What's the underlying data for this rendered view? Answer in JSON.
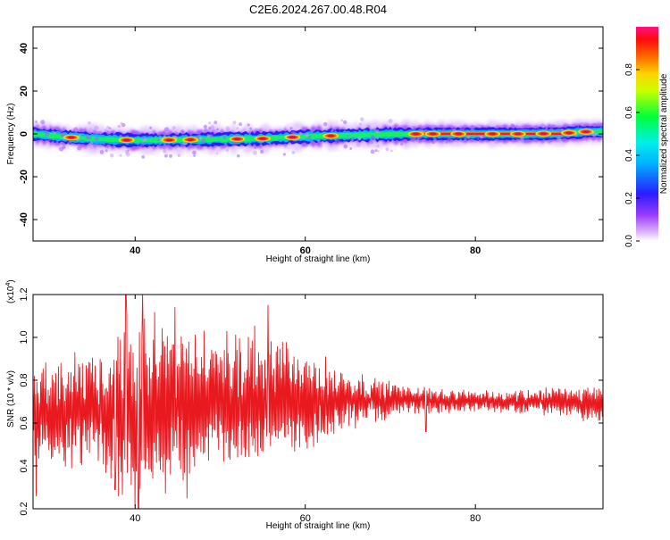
{
  "title": "C2E6.2024.267.00.48.R04",
  "chart_data": [
    {
      "type": "heatmap",
      "xlabel": "Height of straight line (km)",
      "ylabel": "Frequency (Hz)",
      "xlim": [
        28,
        95
      ],
      "ylim": [
        -50,
        50
      ],
      "xticks": [
        40,
        60,
        80
      ],
      "yticks": [
        -40,
        -20,
        0,
        20,
        40
      ],
      "colorbar": {
        "label": "Normalized spectral amplitude",
        "range": [
          0,
          1
        ],
        "ticks": [
          "0.0",
          "0.2",
          "0.4",
          "0.6",
          "0.8"
        ],
        "tick_values": [
          0,
          0.2,
          0.4,
          0.6,
          0.8
        ]
      },
      "ridge_center_hz": [
        [
          28,
          0.0
        ],
        [
          32,
          -1.5
        ],
        [
          36,
          -2.5
        ],
        [
          40,
          -3.0
        ],
        [
          45,
          -2.8
        ],
        [
          50,
          -2.5
        ],
        [
          55,
          -2.2
        ],
        [
          58,
          -1.6
        ],
        [
          62,
          -1.0
        ],
        [
          66,
          -0.6
        ],
        [
          70,
          -0.2
        ],
        [
          74,
          0.0
        ],
        [
          80,
          0.0
        ],
        [
          86,
          0.0
        ],
        [
          90,
          0.2
        ],
        [
          93,
          1.0
        ],
        [
          95,
          1.0
        ]
      ],
      "ridge_peaks_km": [
        32.5,
        39,
        44,
        46.5,
        52,
        55,
        58.5,
        63,
        73,
        75,
        78,
        82,
        85,
        88,
        91,
        93
      ]
    },
    {
      "type": "line",
      "xlabel": "Height of straight line (km)",
      "ylabel": "SNR (10 * v/v)",
      "scale_label": "(x10",
      "scale_exp": "4",
      "xlim": [
        28,
        95
      ],
      "ylim": [
        0.2,
        1.2
      ],
      "xticks": [
        40,
        60,
        80
      ],
      "yticks": [
        "0.2",
        "0.4",
        "0.6",
        "0.8",
        "1.0",
        "1.2"
      ],
      "ytick_values": [
        0.2,
        0.4,
        0.6,
        0.8,
        1.0,
        1.2
      ],
      "series": [
        {
          "color": "#e8191f",
          "envelope": [
            {
              "x": 28,
              "center": 0.66,
              "amp": 0.22
            },
            {
              "x": 35,
              "center": 0.66,
              "amp": 0.24
            },
            {
              "x": 39,
              "center": 0.68,
              "amp": 0.4
            },
            {
              "x": 45,
              "center": 0.68,
              "amp": 0.34
            },
            {
              "x": 50,
              "center": 0.7,
              "amp": 0.26
            },
            {
              "x": 56,
              "center": 0.7,
              "amp": 0.3
            },
            {
              "x": 62,
              "center": 0.7,
              "amp": 0.18
            },
            {
              "x": 67,
              "center": 0.71,
              "amp": 0.1
            },
            {
              "x": 72,
              "center": 0.71,
              "amp": 0.06
            },
            {
              "x": 80,
              "center": 0.7,
              "amp": 0.04
            },
            {
              "x": 90,
              "center": 0.7,
              "amp": 0.06
            },
            {
              "x": 95,
              "center": 0.69,
              "amp": 0.08
            }
          ],
          "spikes": [
            {
              "x": 38.9,
              "y": 1.2
            },
            {
              "x": 40.9,
              "y": 1.2
            },
            {
              "x": 44.7,
              "y": 1.14
            },
            {
              "x": 55.6,
              "y": 1.15
            },
            {
              "x": 40.4,
              "y": 0.2
            },
            {
              "x": 28.4,
              "y": 0.26
            },
            {
              "x": 37.7,
              "y": 0.29
            },
            {
              "x": 46.1,
              "y": 0.25
            },
            {
              "x": 74.2,
              "y": 0.56
            }
          ]
        }
      ]
    }
  ]
}
